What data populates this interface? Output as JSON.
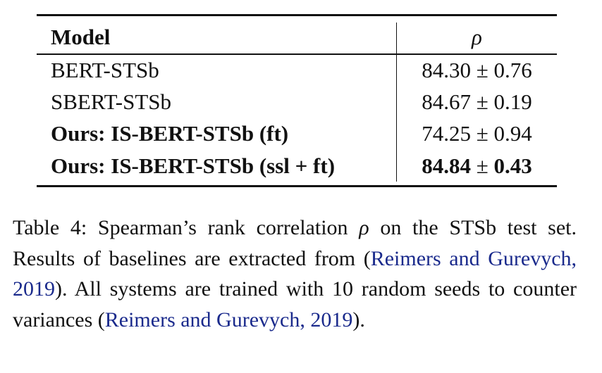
{
  "table": {
    "headers": [
      "Model",
      "ρ"
    ],
    "rows": [
      {
        "model": "BERT-STSb",
        "mean": "84.30",
        "pm": "±",
        "std": "0.76",
        "bold": false
      },
      {
        "model": "SBERT-STSb",
        "mean": "84.67",
        "pm": "±",
        "std": "0.19",
        "bold": false
      },
      {
        "model": "Ours: IS-BERT-STSb (ft)",
        "mean": "74.25",
        "pm": "±",
        "std": "0.94",
        "bold_model": true
      },
      {
        "model": "Ours: IS-BERT-STSb (ssl + ft)",
        "mean": "84.84",
        "pm": "±",
        "std": "0.43",
        "bold_model": true,
        "bold_value": true
      }
    ]
  },
  "caption": {
    "part1": "Table 4: Spearman’s rank correlation ",
    "rho": "ρ",
    "part2": " on the STSb test set. Results of baselines are extracted from (",
    "cite1": "Reimers and Gurevych, 2019",
    "part3": "). All systems are trained with 10 random seeds to counter variances (",
    "cite2": "Reimers and Gurevych, 2019",
    "part4": ")."
  },
  "colors": {
    "citation": "#1a2a8c"
  }
}
